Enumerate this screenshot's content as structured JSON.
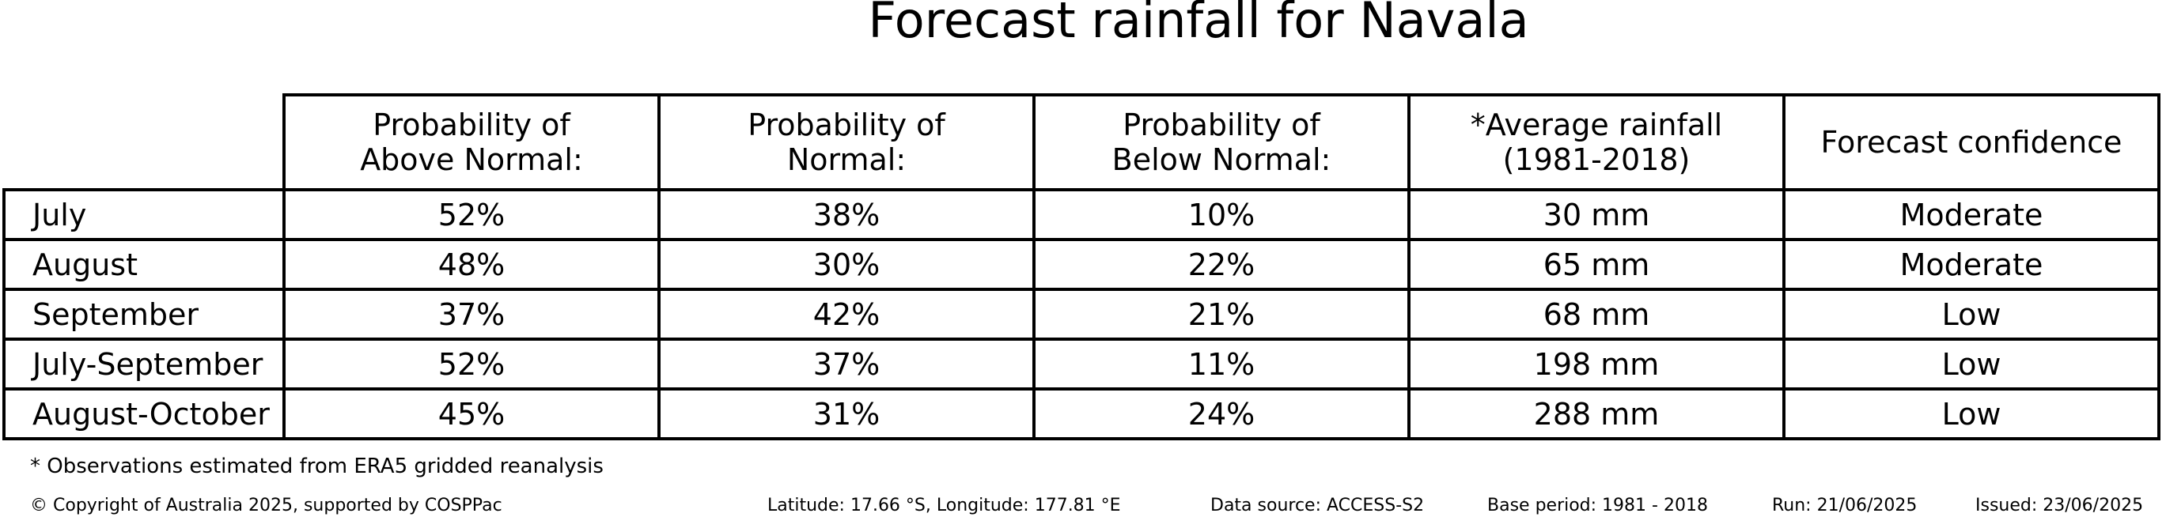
{
  "title": "Forecast rainfall for Navala",
  "columns": [
    [
      "Probability of",
      "Above Normal:"
    ],
    [
      "Probability of",
      "Normal:"
    ],
    [
      "Probability of",
      "Below Normal:"
    ],
    [
      "*Average rainfall",
      "(1981-2018)"
    ],
    [
      "Forecast confidence"
    ]
  ],
  "rows": [
    {
      "period": "July",
      "values": [
        "52%",
        "38%",
        "10%",
        "30 mm",
        "Moderate"
      ]
    },
    {
      "period": "August",
      "values": [
        "48%",
        "30%",
        "22%",
        "65 mm",
        "Moderate"
      ]
    },
    {
      "period": "September",
      "values": [
        "37%",
        "42%",
        "21%",
        "68 mm",
        "Low"
      ]
    },
    {
      "period": "July-September",
      "values": [
        "52%",
        "37%",
        "11%",
        "198 mm",
        "Low"
      ]
    },
    {
      "period": "August-October",
      "values": [
        "45%",
        "31%",
        "24%",
        "288 mm",
        "Low"
      ]
    }
  ],
  "footnote": "* Observations estimated from ERA5 gridded reanalysis",
  "footer": {
    "copyright": "© Copyright of Australia 2025, supported by COSPPac",
    "location": "Latitude: 17.66 °S, Longitude: 177.81 °E",
    "data_source": "Data source: ACCESS-S2",
    "base_period": "Base period: 1981 - 2018",
    "run": "Run: 21/06/2025",
    "issued": "Issued: 23/06/2025"
  },
  "chart_data": {
    "type": "table",
    "title": "Forecast rainfall for Navala",
    "categories": [
      "July",
      "August",
      "September",
      "July-September",
      "August-October"
    ],
    "series": [
      {
        "name": "Probability of Above Normal:",
        "values": [
          52,
          48,
          37,
          52,
          45
        ]
      },
      {
        "name": "Probability of Normal:",
        "values": [
          38,
          30,
          42,
          37,
          31
        ]
      },
      {
        "name": "Probability of Below Normal:",
        "values": [
          10,
          22,
          21,
          11,
          24
        ]
      },
      {
        "name": "*Average rainfall (1981-2018)",
        "values": [
          30,
          65,
          68,
          198,
          288
        ]
      },
      {
        "name": "Forecast confidence",
        "values": [
          "Moderate",
          "Moderate",
          "Low",
          "Low",
          "Low"
        ]
      }
    ]
  }
}
